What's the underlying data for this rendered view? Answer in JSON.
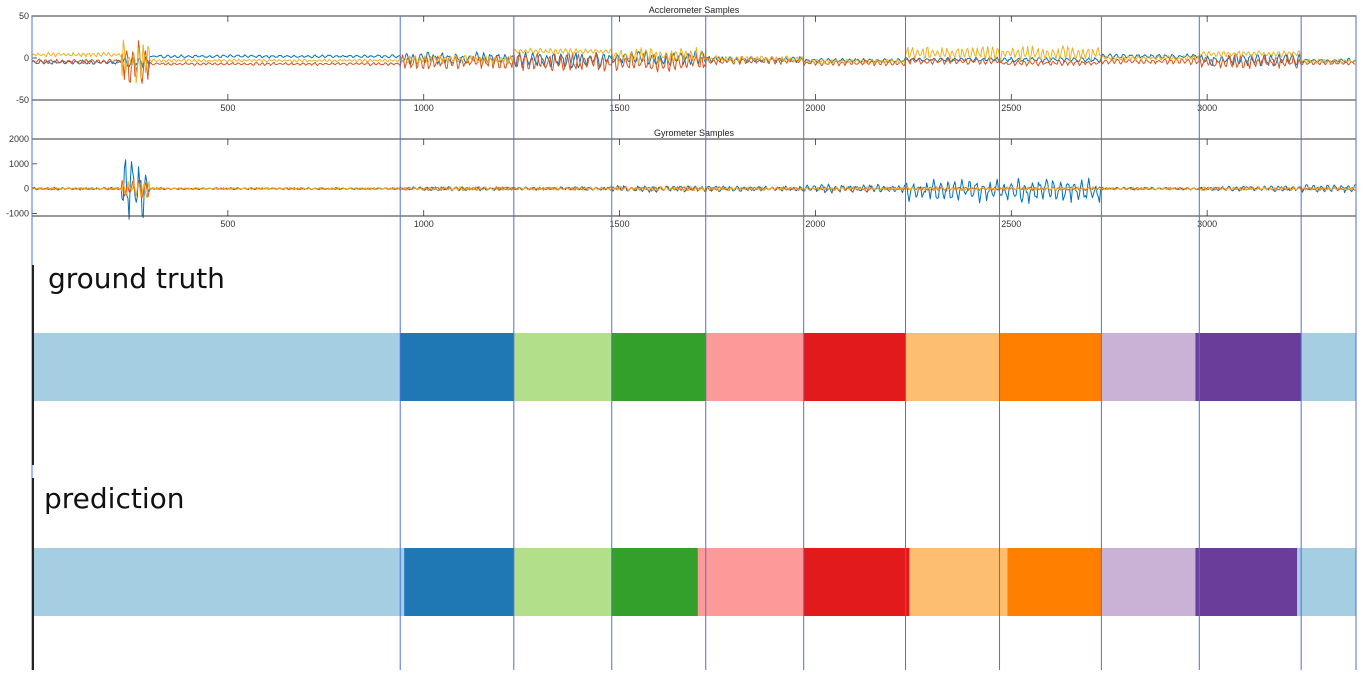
{
  "chart_data": [
    {
      "type": "line",
      "title": "Acclerometer Samples",
      "xlim": [
        0,
        3380
      ],
      "ylim": [
        -50,
        50
      ],
      "xticks": [
        500,
        1000,
        1500,
        2000,
        2500,
        3000
      ],
      "yticks": [
        50,
        0,
        -50
      ],
      "series_colors": [
        "#0072BD",
        "#D95319",
        "#EDB120"
      ],
      "segments": [
        {
          "x": [
            0,
            230
          ],
          "amp": [
            3,
            3,
            3
          ],
          "off": [
            -5,
            -4,
            4
          ]
        },
        {
          "x": [
            230,
            300
          ],
          "amp": [
            8,
            35,
            30
          ],
          "off": [
            -5,
            -5,
            -2
          ]
        },
        {
          "x": [
            300,
            940
          ],
          "amp": [
            2,
            2,
            2
          ],
          "off": [
            2,
            -7,
            -3
          ]
        },
        {
          "x": [
            940,
            1230
          ],
          "amp": [
            8,
            9,
            6
          ],
          "off": [
            0,
            -5,
            -2
          ]
        },
        {
          "x": [
            1230,
            1480
          ],
          "amp": [
            10,
            12,
            4
          ],
          "off": [
            -2,
            -5,
            8
          ]
        },
        {
          "x": [
            1480,
            1720
          ],
          "amp": [
            10,
            12,
            10
          ],
          "off": [
            0,
            -5,
            3
          ]
        },
        {
          "x": [
            1720,
            1970
          ],
          "amp": [
            4,
            5,
            4
          ],
          "off": [
            -2,
            -3,
            -1
          ]
        },
        {
          "x": [
            1970,
            2230
          ],
          "amp": [
            3,
            4,
            3
          ],
          "off": [
            -3,
            -6,
            -4
          ]
        },
        {
          "x": [
            2230,
            2470
          ],
          "amp": [
            3,
            4,
            8
          ],
          "off": [
            -2,
            -4,
            6
          ]
        },
        {
          "x": [
            2470,
            2730
          ],
          "amp": [
            3,
            4,
            10
          ],
          "off": [
            -2,
            -6,
            5
          ]
        },
        {
          "x": [
            2730,
            2980
          ],
          "amp": [
            3,
            4,
            3
          ],
          "off": [
            2,
            -4,
            0
          ]
        },
        {
          "x": [
            2980,
            3240
          ],
          "amp": [
            8,
            9,
            4
          ],
          "off": [
            -2,
            -5,
            5
          ]
        },
        {
          "x": [
            3240,
            3380
          ],
          "amp": [
            3,
            3,
            3
          ],
          "off": [
            -3,
            -6,
            -4
          ]
        }
      ]
    },
    {
      "type": "line",
      "title": "Gyrometer Samples",
      "xlim": [
        0,
        3380
      ],
      "ylim": [
        -1100,
        2000
      ],
      "xticks": [
        500,
        1000,
        1500,
        2000,
        2500,
        3000
      ],
      "yticks": [
        2000,
        1000,
        0,
        -1000
      ],
      "series_colors": [
        "#0072BD",
        "#D95319",
        "#EDB120"
      ],
      "segments": [
        {
          "x": [
            0,
            230
          ],
          "amp": [
            60,
            40,
            40
          ],
          "off": [
            0,
            0,
            0
          ]
        },
        {
          "x": [
            230,
            300
          ],
          "amp": [
            1300,
            400,
            400
          ],
          "off": [
            0,
            0,
            0
          ]
        },
        {
          "x": [
            300,
            940
          ],
          "amp": [
            40,
            40,
            40
          ],
          "off": [
            0,
            0,
            0
          ]
        },
        {
          "x": [
            940,
            1230
          ],
          "amp": [
            90,
            80,
            80
          ],
          "off": [
            0,
            0,
            0
          ]
        },
        {
          "x": [
            1230,
            1480
          ],
          "amp": [
            80,
            70,
            70
          ],
          "off": [
            0,
            0,
            0
          ]
        },
        {
          "x": [
            1480,
            1720
          ],
          "amp": [
            150,
            100,
            100
          ],
          "off": [
            0,
            0,
            0
          ]
        },
        {
          "x": [
            1720,
            1970
          ],
          "amp": [
            120,
            80,
            80
          ],
          "off": [
            0,
            0,
            0
          ]
        },
        {
          "x": [
            1970,
            2230
          ],
          "amp": [
            200,
            80,
            80
          ],
          "off": [
            0,
            0,
            0
          ]
        },
        {
          "x": [
            2230,
            2470
          ],
          "amp": [
            500,
            80,
            80
          ],
          "off": [
            -80,
            0,
            0
          ]
        },
        {
          "x": [
            2470,
            2730
          ],
          "amp": [
            550,
            80,
            80
          ],
          "off": [
            -80,
            0,
            0
          ]
        },
        {
          "x": [
            2730,
            2980
          ],
          "amp": [
            60,
            50,
            50
          ],
          "off": [
            0,
            0,
            0
          ]
        },
        {
          "x": [
            2980,
            3240
          ],
          "amp": [
            120,
            80,
            80
          ],
          "off": [
            0,
            0,
            0
          ]
        },
        {
          "x": [
            3240,
            3380
          ],
          "amp": [
            200,
            80,
            80
          ],
          "off": [
            0,
            0,
            0
          ]
        }
      ]
    },
    {
      "type": "timeline",
      "title": "ground truth",
      "xlim": [
        0,
        3380
      ],
      "segments": [
        {
          "start": 0,
          "end": 940,
          "color": "#a6cee3"
        },
        {
          "start": 940,
          "end": 1230,
          "color": "#1f78b4"
        },
        {
          "start": 1230,
          "end": 1480,
          "color": "#b2df8a"
        },
        {
          "start": 1480,
          "end": 1720,
          "color": "#33a02c"
        },
        {
          "start": 1720,
          "end": 1970,
          "color": "#fb9a99"
        },
        {
          "start": 1970,
          "end": 2230,
          "color": "#e31a1c"
        },
        {
          "start": 2230,
          "end": 2470,
          "color": "#fdbf6f"
        },
        {
          "start": 2470,
          "end": 2730,
          "color": "#ff7f00"
        },
        {
          "start": 2730,
          "end": 2970,
          "color": "#cab2d6"
        },
        {
          "start": 2970,
          "end": 3240,
          "color": "#6a3d9a"
        },
        {
          "start": 3240,
          "end": 3380,
          "color": "#a6cee3"
        }
      ]
    },
    {
      "type": "timeline",
      "title": "prediction",
      "xlim": [
        0,
        3380
      ],
      "segments": [
        {
          "start": 0,
          "end": 950,
          "color": "#a6cee3"
        },
        {
          "start": 950,
          "end": 1230,
          "color": "#1f78b4"
        },
        {
          "start": 1230,
          "end": 1480,
          "color": "#b2df8a"
        },
        {
          "start": 1480,
          "end": 1700,
          "color": "#33a02c"
        },
        {
          "start": 1700,
          "end": 1970,
          "color": "#fb9a99"
        },
        {
          "start": 1970,
          "end": 2240,
          "color": "#e31a1c"
        },
        {
          "start": 2240,
          "end": 2490,
          "color": "#fdbf6f"
        },
        {
          "start": 2490,
          "end": 2730,
          "color": "#ff7f00"
        },
        {
          "start": 2730,
          "end": 2970,
          "color": "#cab2d6"
        },
        {
          "start": 2970,
          "end": 3230,
          "color": "#6a3d9a"
        },
        {
          "start": 3230,
          "end": 3380,
          "color": "#a6cee3"
        }
      ]
    }
  ],
  "boundaries": [
    940,
    1230,
    1480,
    1720,
    1970,
    2230,
    2470,
    2730,
    2980,
    3240
  ],
  "boundary_color": "#4a72d9"
}
